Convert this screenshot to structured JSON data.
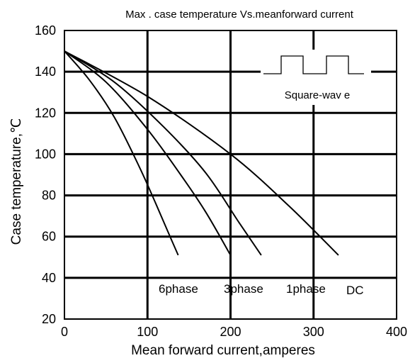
{
  "chart_data": {
    "type": "line",
    "title": "Max . case temperature Vs.meanforward current",
    "xlabel": "Mean  forward current,amperes",
    "ylabel": "Case temperature,℃",
    "xlim": [
      0,
      400
    ],
    "ylim": [
      20,
      160
    ],
    "x_ticks": [
      "0",
      "100",
      "200",
      "300",
      "400"
    ],
    "y_ticks": [
      "20",
      "40",
      "60",
      "80",
      "100",
      "120",
      "140",
      "160"
    ],
    "grid": true,
    "inset_label": "Square-wav e",
    "series": [
      {
        "name": "6phase",
        "x": [
          0,
          30,
          60,
          90,
          110,
          125,
          137
        ],
        "y": [
          150,
          136,
          118,
          94,
          76,
          62,
          51
        ]
      },
      {
        "name": "3phase",
        "x": [
          0,
          50,
          100,
          140,
          170,
          200
        ],
        "y": [
          150,
          135,
          112,
          90,
          72,
          51
        ]
      },
      {
        "name": "1phase",
        "x": [
          0,
          60,
          120,
          170,
          210,
          237
        ],
        "y": [
          150,
          135,
          113,
          91,
          67,
          51
        ]
      },
      {
        "name": "DC",
        "x": [
          0,
          100,
          200,
          270,
          330
        ],
        "y": [
          150,
          128,
          100,
          75,
          51
        ]
      }
    ]
  },
  "colors": {
    "line": "#000000",
    "background": "#ffffff"
  }
}
